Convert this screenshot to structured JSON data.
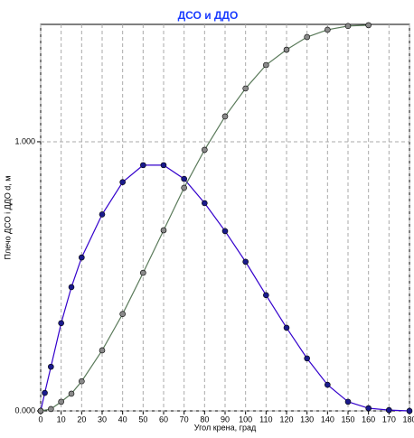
{
  "chart_data": {
    "type": "line",
    "title": "ДСО и ДДО",
    "xlabel": "Угол крена, град",
    "ylabel": "Плечо ДСО і ДДО d, м",
    "xlim": [
      0,
      180
    ],
    "xticks": [
      0,
      10,
      20,
      30,
      40,
      50,
      60,
      70,
      80,
      90,
      100,
      110,
      120,
      130,
      140,
      150,
      160,
      170,
      180
    ],
    "ylim": [
      0,
      1.436
    ],
    "yticks": [
      {
        "value": 0,
        "label": "0.000"
      },
      {
        "value": 1,
        "label": "1.000"
      }
    ],
    "grid": true,
    "series": [
      {
        "color": "#3300cc",
        "marker_color": "#1a1a8c",
        "x": [
          0,
          2,
          5,
          10,
          15,
          20,
          30,
          40,
          50,
          60,
          70,
          80,
          90,
          100,
          110,
          120,
          130,
          140,
          150,
          160,
          170,
          180
        ],
        "values": [
          0,
          0.067,
          0.164,
          0.326,
          0.46,
          0.57,
          0.73,
          0.85,
          0.913,
          0.913,
          0.862,
          0.772,
          0.668,
          0.554,
          0.43,
          0.309,
          0.195,
          0.097,
          0.034,
          0.01,
          0.003,
          0
        ]
      },
      {
        "color": "#5a7a5a",
        "marker_color": "#8a8a8a",
        "x": [
          0,
          5,
          10,
          15,
          20,
          30,
          40,
          50,
          60,
          70,
          80,
          90,
          100,
          110,
          120,
          130,
          140,
          150,
          160
        ],
        "values": [
          0,
          0.007,
          0.034,
          0.064,
          0.11,
          0.225,
          0.36,
          0.513,
          0.671,
          0.829,
          0.97,
          1.094,
          1.198,
          1.285,
          1.342,
          1.389,
          1.416,
          1.43,
          1.433
        ]
      }
    ]
  }
}
